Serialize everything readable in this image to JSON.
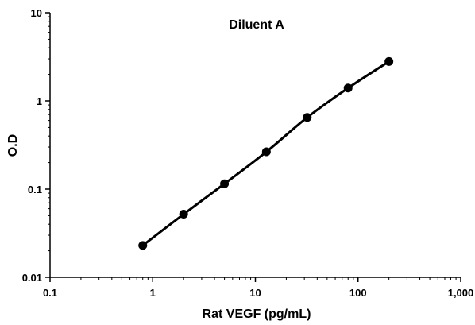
{
  "chart_data": {
    "type": "line",
    "title": "Diluent A",
    "xlabel": "Rat VEGF (pg/mL)",
    "ylabel": "O.D",
    "xscale": "log",
    "yscale": "log",
    "xlim": [
      0.1,
      1000
    ],
    "ylim": [
      0.01,
      10
    ],
    "x_tick_labels": [
      "0.1",
      "1",
      "10",
      "100",
      "1,000"
    ],
    "y_tick_labels": [
      "0.01",
      "0.1",
      "1",
      "10"
    ],
    "grid": false,
    "legend": "none",
    "series": [
      {
        "x": [
          0.8,
          2.0,
          5.0,
          12.8,
          32,
          80,
          200
        ],
        "y": [
          0.023,
          0.052,
          0.115,
          0.265,
          0.65,
          1.4,
          2.8
        ],
        "color": "#000000"
      }
    ]
  }
}
